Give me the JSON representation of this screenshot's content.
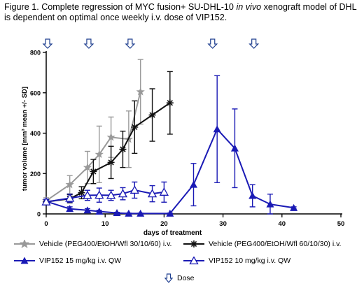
{
  "caption": {
    "part1": "Figure 1. Complete regression of MYC fusion+ SU-DHL-10 ",
    "italic": "in vivo",
    "part2": " xenograft model of DHL is dependent on optimal once weekly i.v. dose of VIP152."
  },
  "chart_data": {
    "type": "line",
    "xlabel": "days of treatment",
    "ylabel": "tumor volume [mm³ mean +/- SD]",
    "xlim": [
      0,
      50
    ],
    "ylim": [
      0,
      800
    ],
    "xticks": [
      0,
      10,
      20,
      30,
      40,
      50
    ],
    "yticks": [
      0,
      200,
      400,
      600,
      800
    ],
    "dose_days": [
      0,
      7,
      14,
      28,
      35
    ],
    "dose_legend": "Dose",
    "series": [
      {
        "name": "Vehicle (PEG400/EtOH/Wfl 30/10/60) i.v.",
        "color": "#999999",
        "marker": "star",
        "x": [
          0,
          4,
          7,
          9,
          11,
          14,
          16
        ],
        "y": [
          65,
          145,
          230,
          295,
          380,
          370,
          605
        ],
        "sd": [
          15,
          45,
          80,
          140,
          100,
          140,
          160
        ]
      },
      {
        "name": "Vehicle (PEG400/EtOH/Wfl 60/10/30) i.v.",
        "color": "#111111",
        "marker": "asterisk",
        "x": [
          0,
          4,
          6,
          8,
          11,
          13,
          15,
          18,
          21
        ],
        "y": [
          60,
          75,
          105,
          210,
          255,
          320,
          430,
          490,
          550
        ],
        "sd": [
          12,
          20,
          30,
          60,
          80,
          90,
          130,
          130,
          155
        ]
      },
      {
        "name": "VIP152 15 mg/kg i.v. QW",
        "color": "#1a1ab5",
        "marker": "triangle-filled",
        "x": [
          0,
          4,
          7,
          9,
          12,
          14,
          16,
          21,
          25,
          29,
          32,
          35,
          38,
          42
        ],
        "y": [
          62,
          25,
          18,
          12,
          5,
          2,
          2,
          2,
          145,
          420,
          325,
          90,
          48,
          30
        ],
        "sd": [
          10,
          10,
          8,
          6,
          3,
          2,
          2,
          2,
          105,
          265,
          195,
          55,
          50,
          5
        ]
      },
      {
        "name": "VIP152 10 mg/kg i.v. QW",
        "color": "#1a1ab5",
        "marker": "triangle-open",
        "x": [
          0,
          4,
          7,
          9,
          11,
          13,
          15,
          18,
          20
        ],
        "y": [
          60,
          78,
          92,
          93,
          92,
          100,
          118,
          100,
          108
        ],
        "sd": [
          10,
          20,
          25,
          35,
          25,
          30,
          40,
          40,
          50
        ]
      }
    ]
  }
}
